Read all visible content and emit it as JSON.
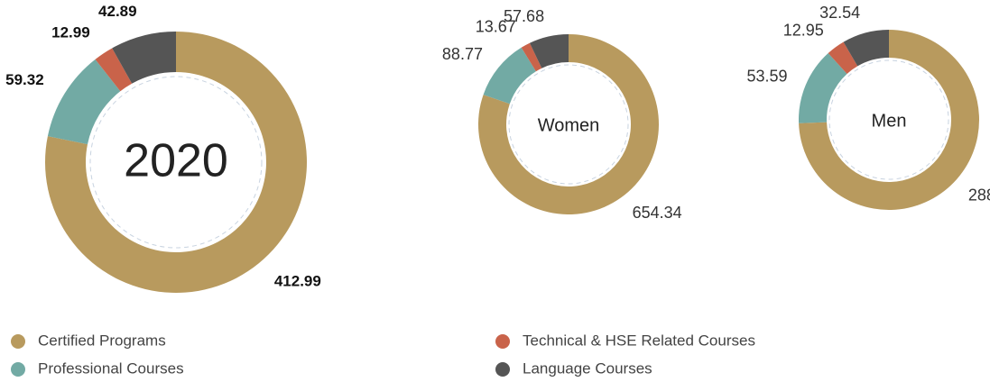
{
  "chart_data": [
    {
      "type": "pie",
      "title": "2020",
      "categories": [
        "Certified Programs",
        "Professional Courses",
        "Technical & HSE Related Courses",
        "Language Courses"
      ],
      "values": [
        412.99,
        59.32,
        12.99,
        42.89
      ],
      "colors": [
        "#b89a5e",
        "#72aaa4",
        "#c9634a",
        "#555555"
      ]
    },
    {
      "type": "pie",
      "title": "Women",
      "categories": [
        "Certified Programs",
        "Professional Courses",
        "Technical & HSE Related Courses",
        "Language Courses"
      ],
      "values": [
        654.34,
        88.77,
        13.67,
        57.68
      ],
      "colors": [
        "#b89a5e",
        "#72aaa4",
        "#c9634a",
        "#555555"
      ]
    },
    {
      "type": "pie",
      "title": "Men",
      "categories": [
        "Certified Programs",
        "Professional Courses",
        "Technical & HSE Related Courses",
        "Language Courses"
      ],
      "values": [
        288,
        53.59,
        12.95,
        32.54
      ],
      "colors": [
        "#b89a5e",
        "#72aaa4",
        "#c9634a",
        "#555555"
      ]
    }
  ]
}
